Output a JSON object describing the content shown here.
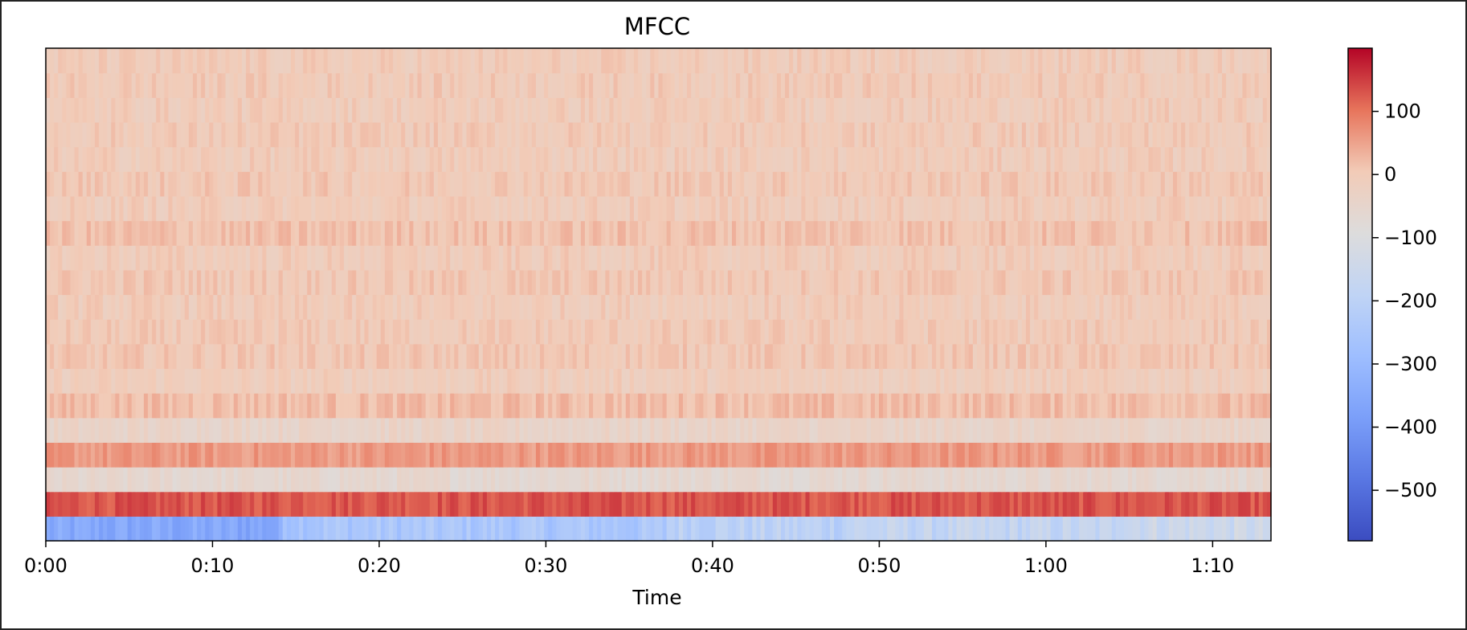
{
  "chart_data": {
    "type": "heatmap",
    "title": "MFCC",
    "xlabel": "Time",
    "ylabel": "",
    "xlim": [
      0,
      73.5
    ],
    "x_ticks": [
      {
        "value": 0,
        "label": "0:00"
      },
      {
        "value": 10,
        "label": "0:10"
      },
      {
        "value": 20,
        "label": "0:20"
      },
      {
        "value": 30,
        "label": "0:30"
      },
      {
        "value": 40,
        "label": "0:40"
      },
      {
        "value": 50,
        "label": "0:50"
      },
      {
        "value": 60,
        "label": "1:00"
      },
      {
        "value": 70,
        "label": "1:10"
      }
    ],
    "n_coefficients": 20,
    "colormap": "coolwarm",
    "colorbar": {
      "range": [
        -580,
        200
      ],
      "ticks": [
        {
          "value": 100,
          "label": "100"
        },
        {
          "value": 0,
          "label": "0"
        },
        {
          "value": -100,
          "label": "−100"
        },
        {
          "value": -200,
          "label": "−200"
        },
        {
          "value": -300,
          "label": "−300"
        },
        {
          "value": -400,
          "label": "−400"
        },
        {
          "value": -500,
          "label": "−500"
        }
      ]
    },
    "coefficient_profiles": [
      {
        "coefficient": 0,
        "segments": [
          {
            "t_start": 0,
            "t_end": 14,
            "value": -360
          },
          {
            "t_start": 14,
            "t_end": 37,
            "value": -250
          },
          {
            "t_start": 37,
            "t_end": 48,
            "value": -200
          },
          {
            "t_start": 48,
            "t_end": 64,
            "value": -180
          },
          {
            "t_start": 64,
            "t_end": 73.5,
            "value": -150
          }
        ]
      },
      {
        "coefficient": 1,
        "mean": 130
      },
      {
        "coefficient": 2,
        "mean": -60
      },
      {
        "coefficient": 3,
        "mean": 60
      },
      {
        "coefficient": 4,
        "mean": -40
      },
      {
        "coefficient": 5,
        "mean": 20
      },
      {
        "coefficient": 6,
        "mean": -10
      },
      {
        "coefficient": 7,
        "mean": 5
      },
      {
        "coefficient": 8,
        "mean": 0
      },
      {
        "coefficient": 9,
        "mean": -5
      },
      {
        "coefficient": 10,
        "mean": 5
      },
      {
        "coefficient": 11,
        "mean": -5
      },
      {
        "coefficient": 12,
        "mean": 15
      },
      {
        "coefficient": 13,
        "mean": -5
      },
      {
        "coefficient": 14,
        "mean": 5
      },
      {
        "coefficient": 15,
        "mean": -5
      },
      {
        "coefficient": 16,
        "mean": 0
      },
      {
        "coefficient": 17,
        "mean": -5
      },
      {
        "coefficient": 18,
        "mean": 0
      },
      {
        "coefficient": 19,
        "mean": -5
      }
    ]
  }
}
